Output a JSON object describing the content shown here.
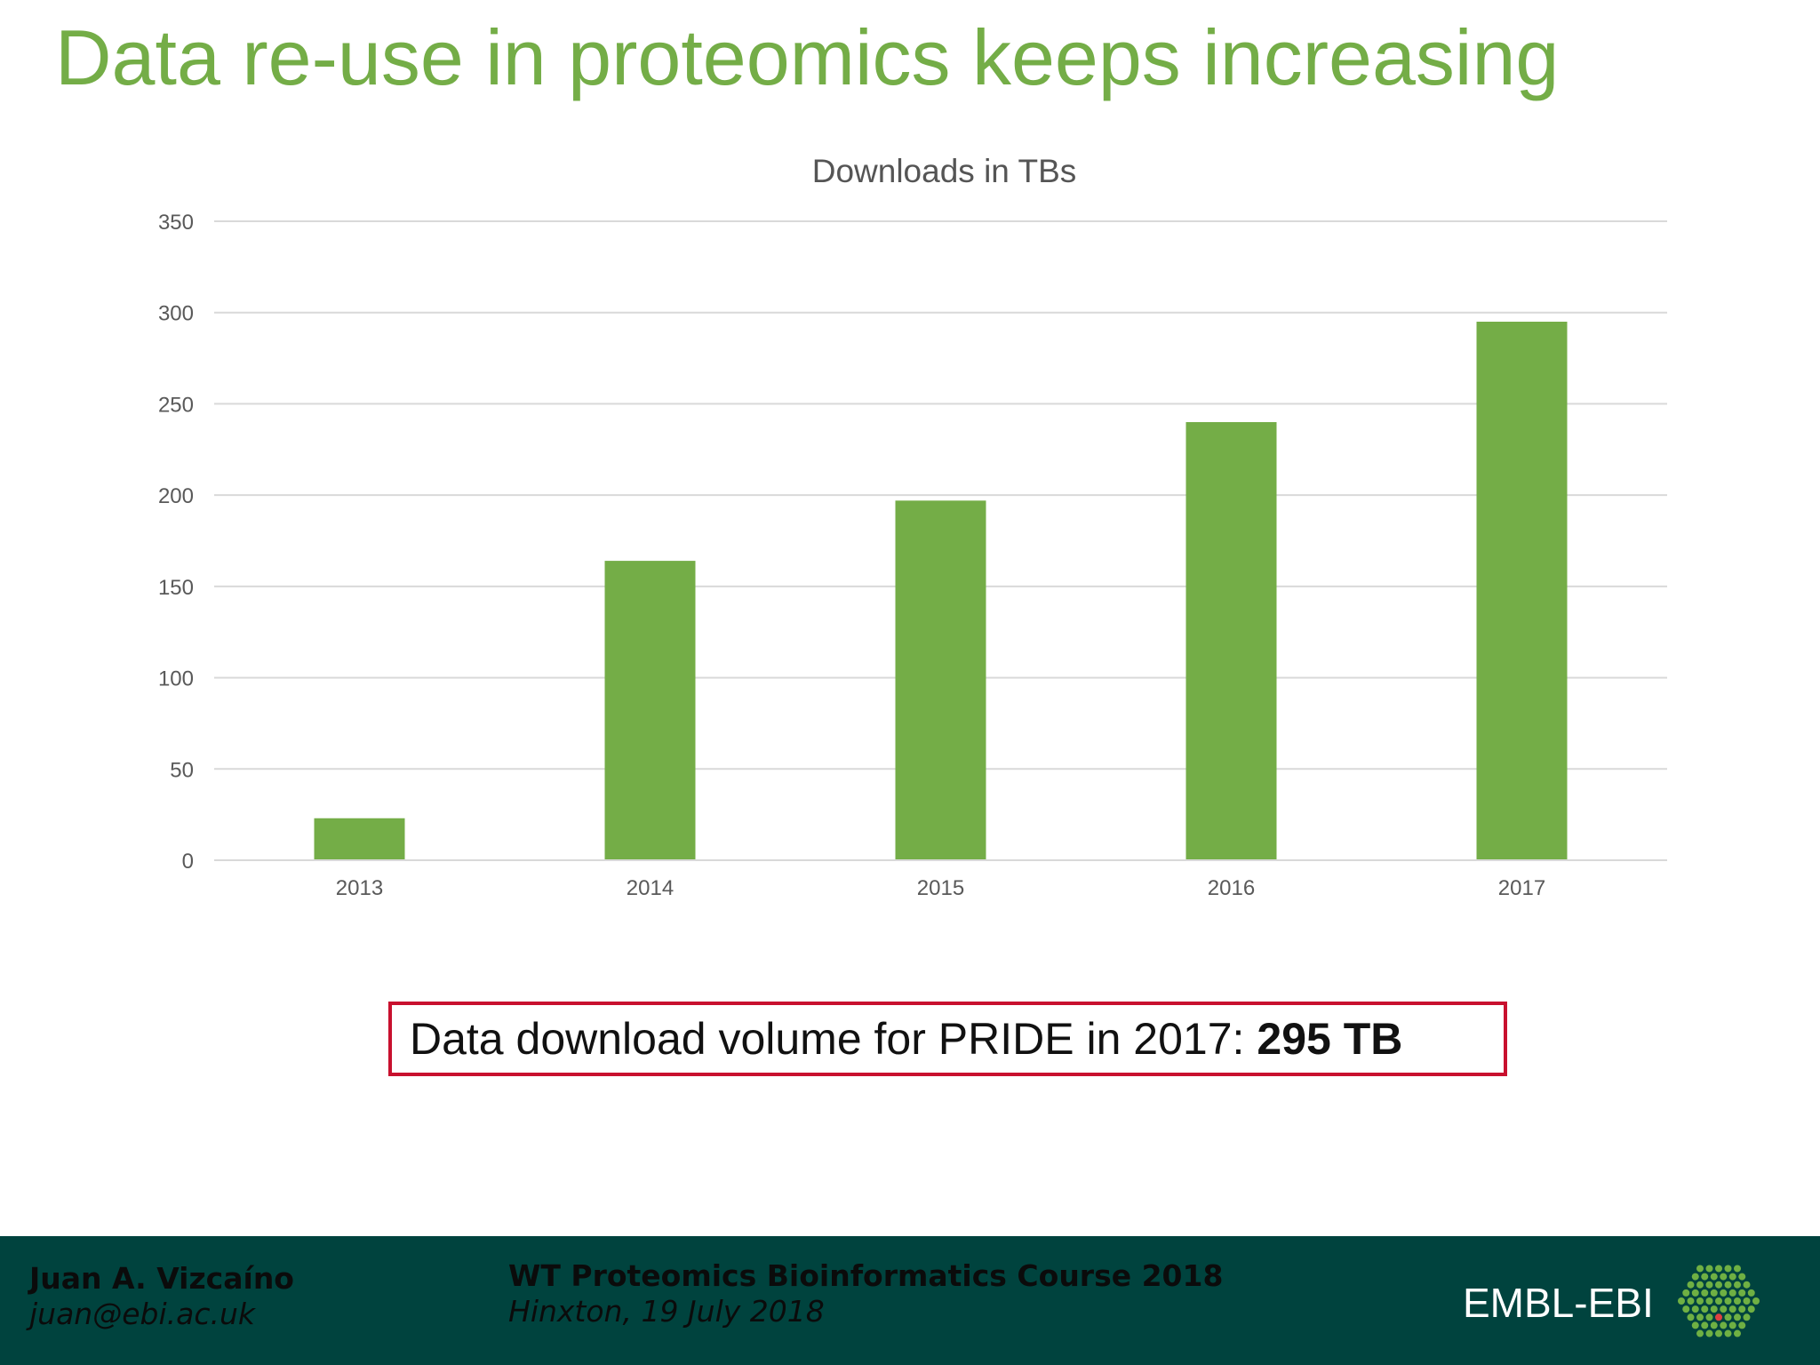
{
  "slide": {
    "title": "Data re-use in proteomics keeps increasing",
    "callout_text": "Data download volume for PRIDE in 2017:",
    "callout_value": "295 TB"
  },
  "chart_data": {
    "type": "bar",
    "title": "Downloads in TBs",
    "categories": [
      "2013",
      "2014",
      "2015",
      "2016",
      "2017"
    ],
    "values": [
      23,
      164,
      197,
      240,
      295
    ],
    "ylim": [
      0,
      350
    ],
    "yticks": [
      0,
      50,
      100,
      150,
      200,
      250,
      300,
      350
    ],
    "grid": true,
    "bar_color": "#74ad47"
  },
  "footer": {
    "author": "Juan A. Vizcaíno",
    "email": "juan@ebi.ac.uk",
    "course": "WT Proteomics Bioinformatics Course 2018",
    "place_date": "Hinxton, 19 July 2018",
    "logo_text": "EMBL-EBI",
    "background_color": "#00433e"
  }
}
